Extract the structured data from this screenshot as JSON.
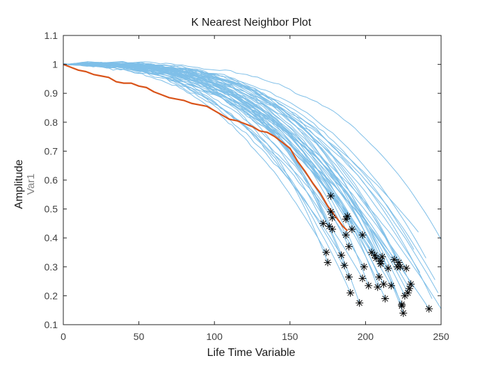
{
  "chart_data": {
    "type": "line",
    "title": "K Nearest Neighbor Plot",
    "xlabel": "Life Time Variable",
    "ylabel": "Amplitude",
    "ylabel_secondary": "Var1",
    "xlim": [
      0,
      250
    ],
    "ylim": [
      0.1,
      1.1
    ],
    "xticks": [
      0,
      50,
      100,
      150,
      200,
      250
    ],
    "yticks": [
      0.1,
      0.2,
      0.3,
      0.4,
      0.5,
      0.6,
      0.7,
      0.8,
      0.9,
      1,
      1.1
    ],
    "xtick_labels": [
      "0",
      "50",
      "100",
      "150",
      "200",
      "250"
    ],
    "ytick_labels": [
      "0.1",
      "0.2",
      "0.3",
      "0.4",
      "0.5",
      "0.6",
      "0.7",
      "0.8",
      "0.9",
      "1",
      "1.1"
    ],
    "grid": false,
    "colors": {
      "neighbors": "#7fbfe8",
      "highlight": "#d95319",
      "markers": "#000000",
      "axes": "#262626"
    },
    "highlight_series": {
      "x": [
        0,
        5,
        10,
        15,
        20,
        25,
        30,
        35,
        40,
        45,
        50,
        55,
        60,
        65,
        70,
        75,
        80,
        85,
        90,
        95,
        100,
        105,
        110,
        115,
        120,
        125,
        130,
        135,
        140,
        145,
        150,
        155,
        160,
        165,
        170,
        175,
        180,
        185,
        188
      ],
      "y": [
        1.0,
        0.99,
        0.98,
        0.975,
        0.965,
        0.96,
        0.955,
        0.94,
        0.935,
        0.935,
        0.925,
        0.92,
        0.905,
        0.895,
        0.885,
        0.88,
        0.875,
        0.865,
        0.86,
        0.855,
        0.84,
        0.825,
        0.81,
        0.805,
        0.795,
        0.785,
        0.77,
        0.765,
        0.75,
        0.73,
        0.71,
        0.665,
        0.63,
        0.59,
        0.555,
        0.51,
        0.475,
        0.44,
        0.425
      ]
    },
    "neighbor_end_points": [
      {
        "x": 172,
        "y": 0.45
      },
      {
        "x": 174,
        "y": 0.35
      },
      {
        "x": 175,
        "y": 0.315
      },
      {
        "x": 176,
        "y": 0.44
      },
      {
        "x": 177,
        "y": 0.545
      },
      {
        "x": 177,
        "y": 0.49
      },
      {
        "x": 178,
        "y": 0.47
      },
      {
        "x": 178,
        "y": 0.43
      },
      {
        "x": 184,
        "y": 0.34
      },
      {
        "x": 186,
        "y": 0.305
      },
      {
        "x": 187,
        "y": 0.465
      },
      {
        "x": 187,
        "y": 0.41
      },
      {
        "x": 188,
        "y": 0.475
      },
      {
        "x": 189,
        "y": 0.37
      },
      {
        "x": 189,
        "y": 0.265
      },
      {
        "x": 190,
        "y": 0.21
      },
      {
        "x": 191,
        "y": 0.43
      },
      {
        "x": 196,
        "y": 0.175
      },
      {
        "x": 198,
        "y": 0.41
      },
      {
        "x": 198,
        "y": 0.26
      },
      {
        "x": 199,
        "y": 0.3
      },
      {
        "x": 202,
        "y": 0.235
      },
      {
        "x": 204,
        "y": 0.35
      },
      {
        "x": 206,
        "y": 0.34
      },
      {
        "x": 207,
        "y": 0.33
      },
      {
        "x": 208,
        "y": 0.23
      },
      {
        "x": 209,
        "y": 0.265
      },
      {
        "x": 210,
        "y": 0.32
      },
      {
        "x": 210,
        "y": 0.31
      },
      {
        "x": 211,
        "y": 0.335
      },
      {
        "x": 212,
        "y": 0.24
      },
      {
        "x": 213,
        "y": 0.19
      },
      {
        "x": 215,
        "y": 0.295
      },
      {
        "x": 217,
        "y": 0.235
      },
      {
        "x": 219,
        "y": 0.325
      },
      {
        "x": 221,
        "y": 0.3
      },
      {
        "x": 222,
        "y": 0.315
      },
      {
        "x": 223,
        "y": 0.3
      },
      {
        "x": 224,
        "y": 0.17
      },
      {
        "x": 224,
        "y": 0.165
      },
      {
        "x": 225,
        "y": 0.14
      },
      {
        "x": 226,
        "y": 0.2
      },
      {
        "x": 227,
        "y": 0.295
      },
      {
        "x": 228,
        "y": 0.21
      },
      {
        "x": 229,
        "y": 0.225
      },
      {
        "x": 230,
        "y": 0.24
      },
      {
        "x": 242,
        "y": 0.155
      }
    ],
    "neighbor_extra_end_points": [
      {
        "x": 235,
        "y": 0.42
      },
      {
        "x": 248,
        "y": 0.21
      },
      {
        "x": 250,
        "y": 0.395
      },
      {
        "x": 250,
        "y": 0.155
      },
      {
        "x": 246,
        "y": 0.255
      },
      {
        "x": 240,
        "y": 0.33
      },
      {
        "x": 236,
        "y": 0.28
      },
      {
        "x": 232,
        "y": 0.36
      },
      {
        "x": 244,
        "y": 0.19
      }
    ]
  }
}
